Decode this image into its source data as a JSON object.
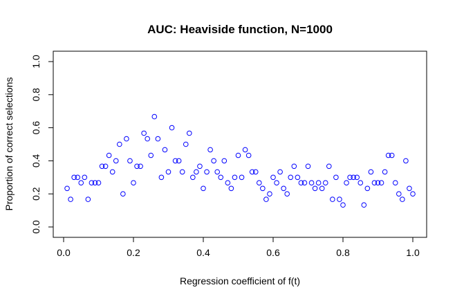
{
  "chart_data": {
    "type": "scatter",
    "title": "AUC: Heaviside function, N=1000",
    "xlabel": "Regression coefficient of f(t)",
    "ylabel": "Proportion of correct selections",
    "xlim": [
      0.0,
      1.0
    ],
    "ylim": [
      0.0,
      1.0
    ],
    "x_ticks": [
      "0.0",
      "0.2",
      "0.4",
      "0.6",
      "0.8",
      "1.0"
    ],
    "y_ticks": [
      "0.0",
      "0.2",
      "0.4",
      "0.6",
      "0.8",
      "1.0"
    ],
    "grid": false,
    "legend": "none",
    "marker": "open-circle",
    "marker_color": "#0000ff",
    "series": [
      {
        "x": [
          0.01,
          0.02,
          0.03,
          0.04,
          0.05,
          0.06,
          0.07,
          0.08,
          0.09,
          0.1,
          0.11,
          0.12,
          0.13,
          0.14,
          0.15,
          0.16,
          0.17,
          0.18,
          0.19,
          0.2,
          0.21,
          0.22,
          0.23,
          0.24,
          0.25,
          0.26,
          0.27,
          0.28,
          0.29,
          0.3,
          0.31,
          0.32,
          0.33,
          0.34,
          0.35,
          0.36,
          0.37,
          0.38,
          0.39,
          0.4,
          0.41,
          0.42,
          0.43,
          0.44,
          0.45,
          0.46,
          0.47,
          0.48,
          0.49,
          0.5,
          0.51,
          0.52,
          0.53,
          0.54,
          0.55,
          0.56,
          0.57,
          0.58,
          0.59,
          0.6,
          0.61,
          0.62,
          0.63,
          0.64,
          0.65,
          0.66,
          0.67,
          0.68,
          0.69,
          0.7,
          0.71,
          0.72,
          0.73,
          0.74,
          0.75,
          0.76,
          0.77,
          0.78,
          0.79,
          0.8,
          0.81,
          0.82,
          0.83,
          0.84,
          0.85,
          0.86,
          0.87,
          0.88,
          0.89,
          0.9,
          0.91,
          0.92,
          0.93,
          0.94,
          0.95,
          0.96,
          0.97,
          0.98,
          0.99,
          1.0
        ],
        "y": [
          0.233,
          0.167,
          0.3,
          0.3,
          0.267,
          0.3,
          0.167,
          0.267,
          0.267,
          0.267,
          0.367,
          0.367,
          0.433,
          0.333,
          0.4,
          0.5,
          0.2,
          0.533,
          0.4,
          0.267,
          0.367,
          0.367,
          0.567,
          0.533,
          0.433,
          0.667,
          0.533,
          0.3,
          0.467,
          0.333,
          0.6,
          0.4,
          0.4,
          0.333,
          0.5,
          0.567,
          0.3,
          0.333,
          0.367,
          0.233,
          0.333,
          0.467,
          0.4,
          0.333,
          0.3,
          0.4,
          0.267,
          0.233,
          0.3,
          0.433,
          0.3,
          0.467,
          0.433,
          0.333,
          0.333,
          0.267,
          0.233,
          0.167,
          0.2,
          0.3,
          0.267,
          0.333,
          0.233,
          0.2,
          0.3,
          0.367,
          0.3,
          0.267,
          0.267,
          0.367,
          0.267,
          0.233,
          0.267,
          0.233,
          0.267,
          0.367,
          0.167,
          0.3,
          0.167,
          0.133,
          0.267,
          0.3,
          0.3,
          0.3,
          0.267,
          0.133,
          0.233,
          0.333,
          0.267,
          0.267,
          0.267,
          0.333,
          0.433,
          0.433,
          0.267,
          0.2,
          0.167,
          0.4,
          0.233,
          0.2
        ]
      }
    ]
  }
}
